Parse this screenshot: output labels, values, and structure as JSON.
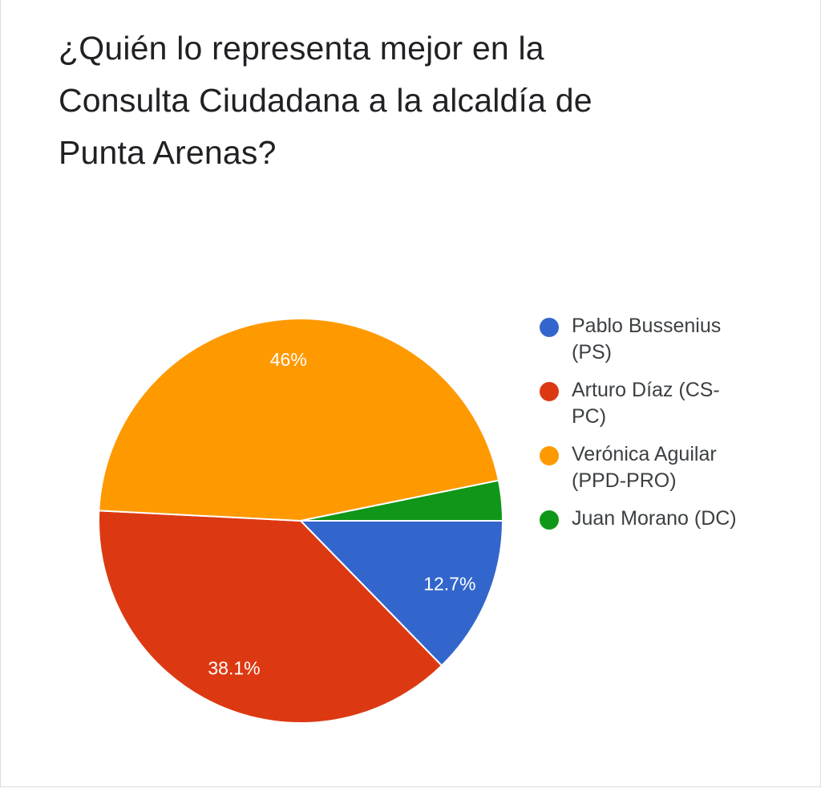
{
  "chart_data": {
    "type": "pie",
    "title_lines": [
      "¿Quién lo representa mejor en la",
      "Consulta Ciudadana a la alcaldía de",
      "Punta Arenas?"
    ],
    "slices": [
      {
        "label_lines": [
          "Pablo Bussenius",
          "(PS)"
        ],
        "value": 12.7,
        "value_label": "12.7%",
        "color": "#3366cc"
      },
      {
        "label_lines": [
          "Arturo Díaz (CS-",
          "PC)"
        ],
        "value": 38.1,
        "value_label": "38.1%",
        "color": "#dc3912"
      },
      {
        "label_lines": [
          "Verónica Aguilar",
          "(PPD-PRO)"
        ],
        "value": 46,
        "value_label": "46%",
        "color": "#ff9900"
      },
      {
        "label_lines": [
          "Juan Morano (DC)"
        ],
        "value": 3.2,
        "value_label": "",
        "color": "#109618"
      }
    ],
    "start_direction": "east",
    "direction": "clockwise",
    "legend_position": "right"
  }
}
